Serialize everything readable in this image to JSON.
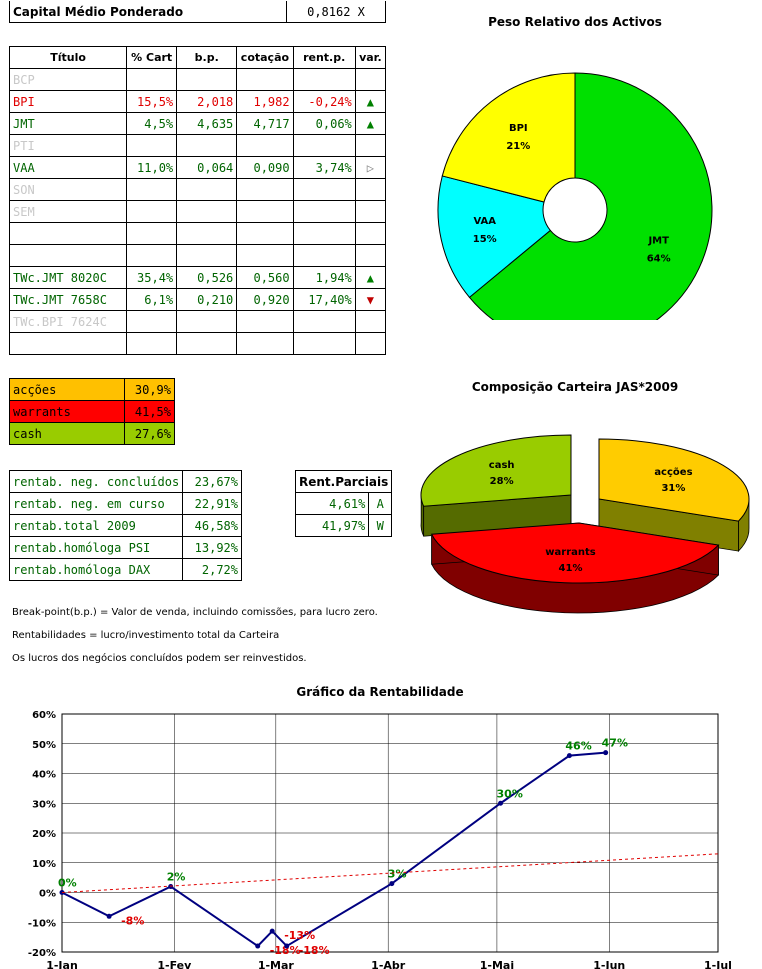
{
  "capital": {
    "label": "Capital Médio Ponderado",
    "value": "0,8162 X"
  },
  "main_table": {
    "headers": [
      "Título",
      "% Cart",
      "b.p.",
      "cotação",
      "rent.p.",
      "var."
    ],
    "rows": [
      {
        "title": "BCP",
        "cart": "",
        "bp": "",
        "cot": "",
        "rent": "",
        "var": "",
        "style": "grey"
      },
      {
        "title": "BPI",
        "cart": "15,5%",
        "bp": "2,018",
        "cot": "1,982",
        "rent": "-0,24%",
        "var": "up",
        "style": "red"
      },
      {
        "title": "JMT",
        "cart": "4,5%",
        "bp": "4,635",
        "cot": "4,717",
        "rent": "0,06%",
        "var": "up",
        "style": "green"
      },
      {
        "title": "PTI",
        "cart": "",
        "bp": "",
        "cot": "",
        "rent": "",
        "var": "",
        "style": "grey"
      },
      {
        "title": "VAA",
        "cart": "11,0%",
        "bp": "0,064",
        "cot": "0,090",
        "rent": "3,74%",
        "var": "right",
        "style": "green"
      },
      {
        "title": "SON",
        "cart": "",
        "bp": "",
        "cot": "",
        "rent": "",
        "var": "",
        "style": "grey"
      },
      {
        "title": "SEM",
        "cart": "",
        "bp": "",
        "cot": "",
        "rent": "",
        "var": "",
        "style": "grey"
      },
      {
        "title": "",
        "cart": "",
        "bp": "",
        "cot": "",
        "rent": "",
        "var": "",
        "style": "grey"
      },
      {
        "title": "",
        "cart": "",
        "bp": "",
        "cot": "",
        "rent": "",
        "var": "",
        "style": "grey"
      },
      {
        "title": "TWc.JMT 8020C",
        "cart": "35,4%",
        "bp": "0,526",
        "cot": "0,560",
        "rent": "1,94%",
        "var": "up",
        "style": "green"
      },
      {
        "title": "TWc.JMT 7658C",
        "cart": "6,1%",
        "bp": "0,210",
        "cot": "0,920",
        "rent": "17,40%",
        "var": "down",
        "style": "green"
      },
      {
        "title": "TWc.BPI 7624C",
        "cart": "",
        "bp": "",
        "cot": "",
        "rent": "",
        "var": "",
        "style": "grey"
      },
      {
        "title": "",
        "cart": "",
        "bp": "",
        "cot": "",
        "rent": "",
        "var": "",
        "style": "grey"
      }
    ]
  },
  "composition": [
    {
      "label": "acções",
      "value": "30,9%",
      "color": "#ffc000"
    },
    {
      "label": "warrants",
      "value": "41,5%",
      "color": "#ff0000"
    },
    {
      "label": "cash",
      "value": "27,6%",
      "color": "#99cc00"
    }
  ],
  "rentab": [
    {
      "label": "rentab. neg. concluídos",
      "value": "23,67%"
    },
    {
      "label": "rentab. neg. em curso",
      "value": "22,91%"
    },
    {
      "label": "rentab.total 2009",
      "value": "46,58%"
    },
    {
      "label": "rentab.homóloga PSI",
      "value": "13,92%"
    },
    {
      "label": "rentab.homóloga DAX",
      "value": "2,72%"
    }
  ],
  "parciais": {
    "header": "Rent.Parciais",
    "rows": [
      {
        "value": "4,61%",
        "tag": "A"
      },
      {
        "value": "41,97%",
        "tag": "W"
      }
    ]
  },
  "notes": [
    "Break-point(b.p.) = Valor de venda, incluindo comissões, para lucro zero.",
    "Rentabilidades = lucro/investimento total da Carteira",
    "Os lucros dos negócios concluídos podem ser reinvestidos."
  ],
  "chart_data": [
    {
      "type": "pie",
      "title": "Peso Relativo dos Activos",
      "donut": true,
      "slices": [
        {
          "label": "JMT",
          "value": 64,
          "text": "64%",
          "color": "#00e000"
        },
        {
          "label": "VAA",
          "value": 15,
          "text": "15%",
          "color": "#00ffff"
        },
        {
          "label": "BPI",
          "value": 21,
          "text": "21%",
          "color": "#ffff00"
        }
      ]
    },
    {
      "type": "pie",
      "title": "Composição Carteira JAS*2009",
      "three_d": true,
      "exploded": true,
      "slices": [
        {
          "label": "acções",
          "value": 31,
          "text": "31%",
          "color": "#ffcc00",
          "side": "#808000"
        },
        {
          "label": "warrants",
          "value": 41,
          "text": "41%",
          "color": "#ff0000",
          "side": "#800000"
        },
        {
          "label": "cash",
          "value": 28,
          "text": "28%",
          "color": "#99cc00",
          "side": "#556b00"
        }
      ]
    },
    {
      "type": "line",
      "title": "Gráfico da Rentabilidade",
      "x_ticks": [
        "1-Jan",
        "1-Fev",
        "1-Mar",
        "1-Abr",
        "1-Mai",
        "1-Jun",
        "1-Jul"
      ],
      "x_tick_days": [
        0,
        31,
        59,
        90,
        120,
        151,
        181
      ],
      "y_ticks": [
        "-20%",
        "-10%",
        "0%",
        "10%",
        "20%",
        "30%",
        "40%",
        "50%",
        "60%"
      ],
      "ylim": [
        -20,
        60
      ],
      "series": [
        {
          "color": "#000080",
          "points": [
            {
              "day": 0,
              "y": 0,
              "label": "0%",
              "lc": "#008000"
            },
            {
              "day": 13,
              "y": -8,
              "label": "-8%",
              "lc": "#e00000"
            },
            {
              "day": 30,
              "y": 2,
              "label": "2%",
              "lc": "#008000"
            },
            {
              "day": 54,
              "y": -18,
              "label": "-18%",
              "lc": "#e00000"
            },
            {
              "day": 58,
              "y": -13,
              "label": "-13%",
              "lc": "#e00000"
            },
            {
              "day": 62,
              "y": -18,
              "label": "-18%",
              "lc": "#e00000"
            },
            {
              "day": 91,
              "y": 3,
              "label": "3%",
              "lc": "#008000"
            },
            {
              "day": 121,
              "y": 30,
              "label": "30%",
              "lc": "#008000"
            },
            {
              "day": 140,
              "y": 46,
              "label": "46%",
              "lc": "#008000"
            },
            {
              "day": 150,
              "y": 47,
              "label": "47%",
              "lc": "#008000"
            }
          ]
        },
        {
          "color": "#e00000",
          "dashed": true,
          "points": [
            {
              "day": 0,
              "y": 0
            },
            {
              "day": 181,
              "y": 13
            }
          ]
        }
      ]
    }
  ]
}
